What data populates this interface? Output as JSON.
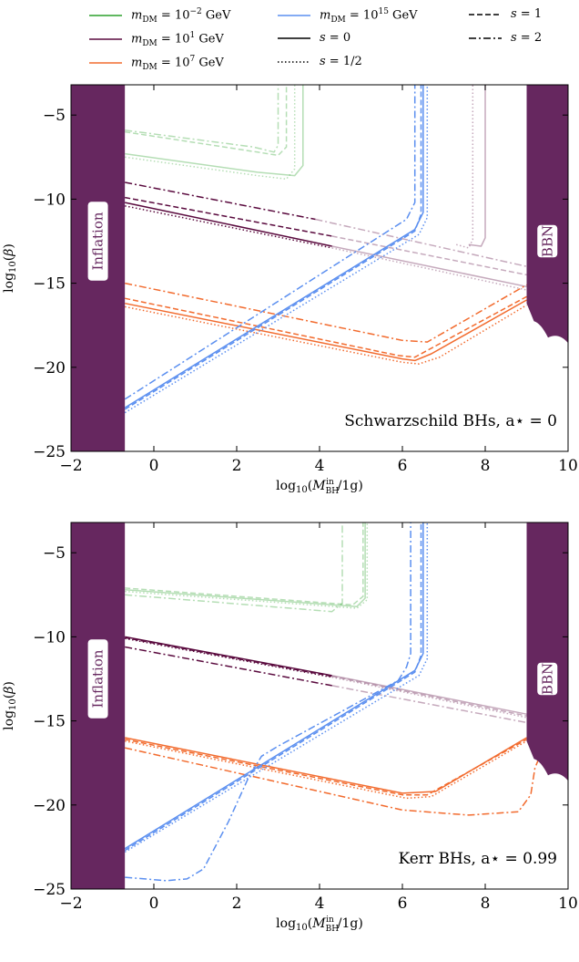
{
  "legend": {
    "mass_entries": [
      {
        "label": "m_DM = 10^-2 GeV",
        "text": "mDM = 10−2 GeV",
        "color": "#2ca02c"
      },
      {
        "label": "m_DM = 10^1 GeV",
        "text": "mDM = 101 GeV",
        "color": "#5a0a3e"
      },
      {
        "label": "m_DM = 10^7 GeV",
        "text": "mDM = 107 GeV",
        "color": "#f26b2e"
      },
      {
        "label": "m_DM = 10^15 GeV",
        "text": "mDM = 1015 GeV",
        "color": "#5b8ff0"
      }
    ],
    "spin_entries": [
      {
        "label": "s = 0",
        "dash": "solid"
      },
      {
        "label": "s = 1/2",
        "dash": "dotted"
      },
      {
        "label": "s = 1",
        "dash": "dashed"
      },
      {
        "label": "s = 2",
        "dash": "dashdot"
      }
    ]
  },
  "colors": {
    "m1e-2": "#2ca02c",
    "m1e1": "#5a0a3e",
    "m1e7": "#f26b2e",
    "m1e15": "#5b8ff0",
    "band": "#66275f"
  },
  "chart_data": [
    {
      "type": "line",
      "annotation": "Schwarzschild BHs, a⋆ = 0",
      "xlabel": "log10(M_BH^in/1g)",
      "ylabel": "log10(β)",
      "xlim": [
        -2,
        10
      ],
      "ylim": [
        -25,
        -3.2
      ],
      "xticks": [
        "−2",
        "0",
        "2",
        "4",
        "6",
        "8",
        "10"
      ],
      "yticks": [
        "−25",
        "−20",
        "−15",
        "−10",
        "−5"
      ],
      "regions": [
        {
          "label": "Inflation",
          "x": [
            -2,
            -0.7
          ]
        },
        {
          "label": "BBN",
          "x": [
            9.0,
            10
          ]
        }
      ],
      "series": [
        {
          "mass": "m1e-2",
          "spin": "s=0",
          "x": [
            -0.7,
            2.5,
            3.4,
            3.6,
            3.6
          ],
          "y": [
            -7.3,
            -8.4,
            -8.6,
            -8.0,
            -3.2
          ],
          "faded": true
        },
        {
          "mass": "m1e-2",
          "spin": "s=1/2",
          "x": [
            -0.7,
            2.5,
            3.2,
            3.4,
            3.4
          ],
          "y": [
            -7.5,
            -8.6,
            -8.8,
            -8.2,
            -3.2
          ],
          "faded": true
        },
        {
          "mass": "m1e-2",
          "spin": "s=1",
          "x": [
            -0.7,
            2.5,
            3.0,
            3.2,
            3.2
          ],
          "y": [
            -6.0,
            -7.2,
            -7.4,
            -6.9,
            -3.2
          ],
          "faded": true
        },
        {
          "mass": "m1e-2",
          "spin": "s=2",
          "x": [
            -0.7,
            2.4,
            2.9,
            3.0,
            3.0
          ],
          "y": [
            -5.9,
            -6.9,
            -7.2,
            -6.8,
            -3.2
          ],
          "faded": true
        },
        {
          "mass": "m1e1",
          "spin": "s=0",
          "x": [
            -0.7,
            4.3
          ],
          "y": [
            -10.2,
            -12.8
          ]
        },
        {
          "mass": "m1e1",
          "spin": "s=0",
          "x": [
            4.3,
            9.0,
            9.0
          ],
          "y": [
            -12.8,
            -15.2,
            -15.2
          ],
          "faded": true
        },
        {
          "mass": "m1e1",
          "spin": "s=1/2",
          "x": [
            -0.7,
            4.3
          ],
          "y": [
            -10.4,
            -12.9
          ]
        },
        {
          "mass": "m1e1",
          "spin": "s=1/2",
          "x": [
            4.3,
            9.0
          ],
          "y": [
            -12.9,
            -15.4
          ],
          "faded": true
        },
        {
          "mass": "m1e1",
          "spin": "s=1",
          "x": [
            -0.7,
            4.3
          ],
          "y": [
            -9.9,
            -12.2
          ]
        },
        {
          "mass": "m1e1",
          "spin": "s=1",
          "x": [
            4.3,
            9.0
          ],
          "y": [
            -12.2,
            -14.5
          ],
          "faded": true
        },
        {
          "mass": "m1e1",
          "spin": "s=2",
          "x": [
            -0.7,
            3.9
          ],
          "y": [
            -9.0,
            -11.2
          ]
        },
        {
          "mass": "m1e1",
          "spin": "s=2",
          "x": [
            3.9,
            9.0
          ],
          "y": [
            -11.2,
            -14.0
          ],
          "faded": true
        },
        {
          "mass": "m1e1",
          "spin": "s=0",
          "x": [
            7.6,
            7.9,
            8.0,
            8.0
          ],
          "y": [
            -12.7,
            -12.8,
            -12.3,
            -3.2
          ],
          "faded": true
        },
        {
          "mass": "m1e1",
          "spin": "s=1/2",
          "x": [
            7.3,
            7.6,
            7.7,
            7.7
          ],
          "y": [
            -12.7,
            -12.9,
            -12.4,
            -3.2
          ],
          "faded": true
        },
        {
          "mass": "m1e7",
          "spin": "s=0",
          "x": [
            -0.7,
            6.0,
            6.3,
            6.7,
            9.0
          ],
          "y": [
            -16.2,
            -19.5,
            -19.6,
            -19.2,
            -16.0
          ]
        },
        {
          "mass": "m1e7",
          "spin": "s=1/2",
          "x": [
            -0.7,
            6.0,
            6.4,
            6.9,
            9.0
          ],
          "y": [
            -16.4,
            -19.7,
            -19.8,
            -19.4,
            -16.3
          ]
        },
        {
          "mass": "m1e7",
          "spin": "s=1",
          "x": [
            -0.7,
            5.9,
            6.3,
            9.0
          ],
          "y": [
            -15.9,
            -19.3,
            -19.4,
            -15.8
          ]
        },
        {
          "mass": "m1e7",
          "spin": "s=2",
          "x": [
            -0.7,
            6.0,
            6.6,
            9.0
          ],
          "y": [
            -15.0,
            -18.4,
            -18.5,
            -15.1
          ]
        },
        {
          "mass": "m1e15",
          "spin": "s=0",
          "x": [
            -0.7,
            6.3,
            6.5,
            6.5
          ],
          "y": [
            -22.4,
            -11.8,
            -10.8,
            -3.2
          ]
        },
        {
          "mass": "m1e15",
          "spin": "s=1/2",
          "x": [
            -0.7,
            6.4,
            6.6,
            6.6
          ],
          "y": [
            -22.7,
            -12.1,
            -11.1,
            -3.2
          ]
        },
        {
          "mass": "m1e15",
          "spin": "s=1",
          "x": [
            -0.7,
            6.3,
            6.45,
            6.45
          ],
          "y": [
            -22.5,
            -11.9,
            -10.9,
            -3.2
          ]
        },
        {
          "mass": "m1e15",
          "spin": "s=2",
          "x": [
            -0.7,
            6.1,
            6.3,
            6.3
          ],
          "y": [
            -21.9,
            -11.2,
            -10.2,
            -3.2
          ]
        }
      ]
    },
    {
      "type": "line",
      "annotation": "Kerr BHs, a⋆ = 0.99",
      "xlabel": "log10(M_BH^in/1g)",
      "ylabel": "log10(β)",
      "xlim": [
        -2,
        10
      ],
      "ylim": [
        -25,
        -3.2
      ],
      "xticks": [
        "−2",
        "0",
        "2",
        "4",
        "6",
        "8",
        "10"
      ],
      "yticks": [
        "−25",
        "−20",
        "−15",
        "−10",
        "−5"
      ],
      "regions": [
        {
          "label": "Inflation",
          "x": [
            -2,
            -0.7
          ]
        },
        {
          "label": "BBN",
          "x": [
            9.0,
            10
          ]
        }
      ],
      "series": [
        {
          "mass": "m1e-2",
          "spin": "s=0",
          "x": [
            -0.7,
            4.9,
            5.1,
            5.1
          ],
          "y": [
            -7.2,
            -8.2,
            -7.7,
            -3.2
          ],
          "faded": true
        },
        {
          "mass": "m1e-2",
          "spin": "s=1/2",
          "x": [
            -0.7,
            4.9,
            5.15,
            5.15
          ],
          "y": [
            -7.3,
            -8.3,
            -7.8,
            -3.2
          ],
          "faded": true
        },
        {
          "mass": "m1e-2",
          "spin": "s=1",
          "x": [
            -0.7,
            4.8,
            5.05,
            5.05
          ],
          "y": [
            -7.1,
            -8.1,
            -7.6,
            -3.2
          ],
          "faded": true
        },
        {
          "mass": "m1e-2",
          "spin": "s=2",
          "x": [
            -0.7,
            4.3,
            4.55,
            4.55
          ],
          "y": [
            -7.5,
            -8.5,
            -8.0,
            -3.2
          ],
          "faded": true
        },
        {
          "mass": "m1e1",
          "spin": "s=0",
          "x": [
            -0.7,
            4.3
          ],
          "y": [
            -10.0,
            -12.3
          ]
        },
        {
          "mass": "m1e1",
          "spin": "s=0",
          "x": [
            4.3,
            9.0
          ],
          "y": [
            -12.3,
            -14.6
          ],
          "faded": true
        },
        {
          "mass": "m1e1",
          "spin": "s=1/2",
          "x": [
            -0.7,
            4.3
          ],
          "y": [
            -10.1,
            -12.4
          ]
        },
        {
          "mass": "m1e1",
          "spin": "s=1/2",
          "x": [
            4.3,
            9.0
          ],
          "y": [
            -12.4,
            -14.8
          ],
          "faded": true
        },
        {
          "mass": "m1e1",
          "spin": "s=1",
          "x": [
            -0.7,
            4.3
          ],
          "y": [
            -10.05,
            -12.35
          ]
        },
        {
          "mass": "m1e1",
          "spin": "s=1",
          "x": [
            4.3,
            9.0
          ],
          "y": [
            -12.35,
            -14.7
          ],
          "faded": true
        },
        {
          "mass": "m1e1",
          "spin": "s=2",
          "x": [
            -0.7,
            4.3
          ],
          "y": [
            -10.6,
            -12.9
          ]
        },
        {
          "mass": "m1e1",
          "spin": "s=2",
          "x": [
            4.3,
            9.0
          ],
          "y": [
            -12.9,
            -15.1
          ],
          "faded": true
        },
        {
          "mass": "m1e7",
          "spin": "s=0",
          "x": [
            -0.7,
            6.0,
            6.8,
            9.0
          ],
          "y": [
            -16.0,
            -19.3,
            -19.2,
            -16.0
          ]
        },
        {
          "mass": "m1e7",
          "spin": "s=1/2",
          "x": [
            -0.7,
            6.1,
            6.7,
            9.0
          ],
          "y": [
            -16.2,
            -19.6,
            -19.5,
            -16.2
          ]
        },
        {
          "mass": "m1e7",
          "spin": "s=1",
          "x": [
            -0.7,
            6.0,
            6.6,
            9.0
          ],
          "y": [
            -16.1,
            -19.4,
            -19.4,
            -16.1
          ]
        },
        {
          "mass": "m1e7",
          "spin": "s=2",
          "x": [
            -0.7,
            6.0,
            7.6,
            8.8,
            9.1,
            9.2,
            9.3
          ],
          "y": [
            -16.6,
            -20.3,
            -20.6,
            -20.4,
            -19.4,
            -17.8,
            -17.2
          ]
        },
        {
          "mass": "m1e15",
          "spin": "s=0",
          "x": [
            -0.7,
            6.3,
            6.5,
            6.5
          ],
          "y": [
            -22.6,
            -12.0,
            -11.0,
            -3.2
          ]
        },
        {
          "mass": "m1e15",
          "spin": "s=1/2",
          "x": [
            -0.7,
            6.4,
            6.6,
            6.6
          ],
          "y": [
            -22.8,
            -12.3,
            -11.3,
            -3.2
          ]
        },
        {
          "mass": "m1e15",
          "spin": "s=1",
          "x": [
            -0.7,
            6.3,
            6.45,
            6.45
          ],
          "y": [
            -22.7,
            -12.1,
            -11.1,
            -3.2
          ]
        },
        {
          "mass": "m1e15",
          "spin": "s=2",
          "x": [
            -0.7,
            0.3,
            0.8,
            1.2,
            1.8,
            2.3,
            2.6,
            3.0,
            5.9,
            6.1,
            6.2,
            6.2
          ],
          "y": [
            -24.3,
            -24.5,
            -24.4,
            -23.8,
            -21.0,
            -18.3,
            -17.1,
            -16.5,
            -12.6,
            -11.8,
            -11.0,
            -3.2
          ]
        }
      ]
    }
  ]
}
